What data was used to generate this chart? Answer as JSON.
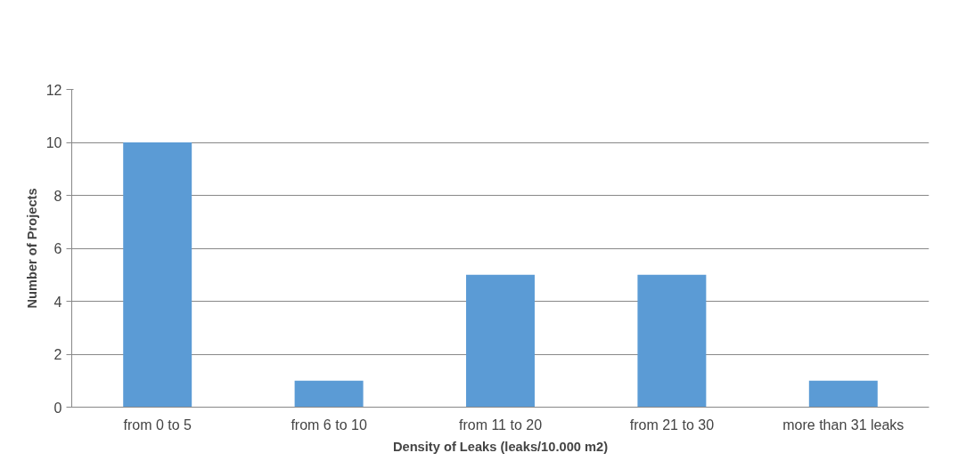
{
  "chart_data": {
    "type": "bar",
    "xlabel": "Density of Leaks (leaks/10.000 m2)",
    "ylabel": "Number of Projects",
    "categories": [
      "from 0 to 5",
      "from 6 to 10",
      "from 11 to 20",
      "from 21 to 30",
      "more than 31 leaks"
    ],
    "values": [
      10,
      1,
      5,
      5,
      1
    ],
    "color": "#5b9bd5",
    "ylim": [
      0,
      12
    ],
    "yticks": [
      0,
      2,
      4,
      6,
      8,
      10,
      12
    ],
    "grid": "y"
  }
}
